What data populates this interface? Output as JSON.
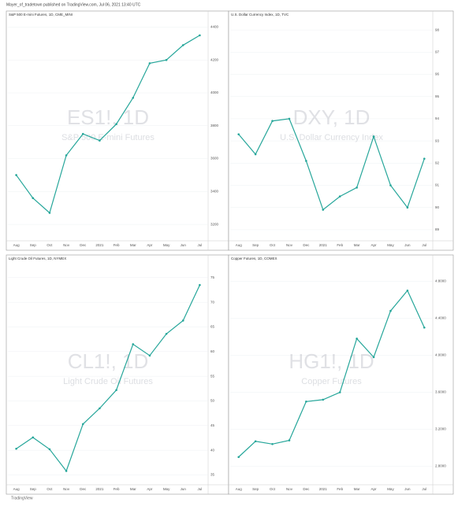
{
  "header": "Mayer_of_tradetown published on TradingView.com, Jul 06, 2021 13:40 UTC",
  "footer": "TradingView",
  "chart_data": [
    {
      "type": "line",
      "title": "S&P 500 E-mini Futures, 1D, CME_MINI",
      "watermark": "ES1!, 1D",
      "subtitle": "S&P 500 E-mini Futures",
      "categories": [
        "Aug",
        "Sep",
        "Oct",
        "Nov",
        "Dec",
        "2021",
        "Feb",
        "Mar",
        "Apr",
        "May",
        "Jun",
        "Jul"
      ],
      "values": [
        3500,
        3360,
        3270,
        3620,
        3750,
        3710,
        3810,
        3970,
        4180,
        4200,
        4290,
        4350
      ],
      "color": "#26a69a",
      "ylim": [
        3100,
        4450
      ],
      "yticks": [
        3200,
        3400,
        3600,
        3800,
        4000,
        4200,
        4400
      ],
      "grid": true
    },
    {
      "type": "line",
      "title": "U.S. Dollar Currency Index, 1D, TVC",
      "watermark": "DXY, 1D",
      "subtitle": "U.S. Dollar Currency Index",
      "categories": [
        "Aug",
        "Sep",
        "Oct",
        "Nov",
        "Dec",
        "2021",
        "Feb",
        "Mar",
        "Apr",
        "May",
        "Jun",
        "Jul"
      ],
      "values": [
        93.3,
        92.4,
        93.9,
        94.0,
        92.1,
        89.9,
        90.5,
        90.9,
        93.2,
        91.0,
        90.0,
        92.2
      ],
      "color": "#26a69a",
      "ylim": [
        88.5,
        98.5
      ],
      "yticks": [
        89,
        90,
        91,
        92,
        93,
        94,
        95,
        96,
        97,
        98
      ],
      "grid": true
    },
    {
      "type": "line",
      "title": "Light Crude Oil Futures, 1D, NYMEX",
      "watermark": "CL1!, 1D",
      "subtitle": "Light Crude Oil Futures",
      "categories": [
        "Aug",
        "Sep",
        "Oct",
        "Nov",
        "Dec",
        "2021",
        "Feb",
        "Mar",
        "Apr",
        "May",
        "Jun",
        "Jul"
      ],
      "values": [
        40.3,
        42.6,
        40.2,
        35.8,
        45.3,
        48.5,
        52.2,
        61.5,
        59.2,
        63.6,
        66.3,
        73.5
      ],
      "color": "#26a69a",
      "ylim": [
        33,
        78
      ],
      "yticks": [
        35,
        40,
        45,
        50,
        55,
        60,
        65,
        70,
        75
      ],
      "grid": true
    },
    {
      "type": "line",
      "title": "Copper Futures, 1D, COMEX",
      "watermark": "HG1!, 1D",
      "subtitle": "Copper Futures",
      "categories": [
        "Aug",
        "Sep",
        "Oct",
        "Nov",
        "Dec",
        "2021",
        "Feb",
        "Mar",
        "Apr",
        "May",
        "Jun",
        "Jul"
      ],
      "values": [
        2.9,
        3.07,
        3.04,
        3.08,
        3.5,
        3.52,
        3.6,
        4.18,
        3.98,
        4.48,
        4.7,
        4.3
      ],
      "color": "#26a69a",
      "ylim": [
        2.6,
        5.0
      ],
      "yticks": [
        {
          "value": 2.8,
          "label": "2.8000"
        },
        {
          "value": 3.2,
          "label": "3.2000"
        },
        {
          "value": 3.6,
          "label": "3.6000"
        },
        {
          "value": 4,
          "label": "4.0000"
        },
        {
          "value": 4.4,
          "label": "4.4000"
        },
        {
          "value": 4.8,
          "label": "4.8000"
        }
      ],
      "grid": true
    }
  ]
}
